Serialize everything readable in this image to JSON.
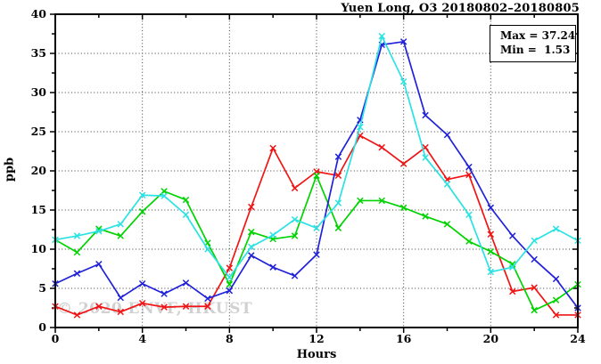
{
  "header": {
    "title": "Yuen Long, O3 20180802–20180805"
  },
  "legend": {
    "max_label": "Max = 37.24",
    "min_label": "Min =  1.53"
  },
  "watermark": {
    "text": "© 2020 ENVF, HKUST"
  },
  "axes": {
    "y_label": "ppb",
    "x_label": "Hours"
  },
  "chart_data": {
    "type": "line",
    "title": "Yuen Long, O3 20180802–20180805",
    "xlabel": "Hours",
    "ylabel": "ppb",
    "xlim": [
      0,
      24
    ],
    "ylim": [
      0,
      40
    ],
    "x_ticks": [
      0,
      4,
      8,
      12,
      16,
      20,
      24
    ],
    "y_ticks": [
      0,
      5,
      10,
      15,
      20,
      25,
      30,
      35,
      40
    ],
    "x_minor_step": 2,
    "y_minor_step": 2.5,
    "grid": "dotted",
    "legend_position": "top-right",
    "annotations": {
      "max": 37.24,
      "min": 1.53
    },
    "x": [
      0,
      1,
      2,
      3,
      4,
      5,
      6,
      7,
      8,
      9,
      10,
      11,
      12,
      13,
      14,
      15,
      16,
      17,
      18,
      19,
      20,
      21,
      22,
      23,
      24
    ],
    "series": [
      {
        "name": "series-red",
        "color": "#f11414",
        "marker": "x",
        "values": [
          2.7,
          1.6,
          2.7,
          2.0,
          3.1,
          2.6,
          2.7,
          2.7,
          7.6,
          15.4,
          22.9,
          17.8,
          19.9,
          19.4,
          24.5,
          23.0,
          20.9,
          23.0,
          18.9,
          19.5,
          11.9,
          4.6,
          5.1,
          1.6,
          1.6
        ]
      },
      {
        "name": "series-green",
        "color": "#00d300",
        "marker": "x",
        "values": [
          11.2,
          9.6,
          12.6,
          11.7,
          14.8,
          17.4,
          16.3,
          10.8,
          5.5,
          12.2,
          11.3,
          11.7,
          19.4,
          12.7,
          16.2,
          16.2,
          15.3,
          14.2,
          13.2,
          11.0,
          9.7,
          8.1,
          2.2,
          3.5,
          5.5
        ]
      },
      {
        "name": "series-blue",
        "color": "#2121d9",
        "marker": "x",
        "values": [
          5.6,
          6.9,
          8.1,
          3.8,
          5.6,
          4.3,
          5.7,
          3.7,
          4.7,
          9.2,
          7.7,
          6.6,
          9.3,
          21.8,
          26.5,
          36.1,
          36.5,
          27.1,
          24.6,
          20.5,
          15.3,
          11.7,
          8.7,
          6.2,
          2.5
        ]
      },
      {
        "name": "series-cyan",
        "color": "#2be2e2",
        "marker": "x",
        "values": [
          11.2,
          11.7,
          12.3,
          13.2,
          16.9,
          16.8,
          14.4,
          10.0,
          6.4,
          10.3,
          11.8,
          13.8,
          12.7,
          15.9,
          25.6,
          37.2,
          31.4,
          21.7,
          18.3,
          14.4,
          7.1,
          7.7,
          11.1,
          12.6,
          11.1
        ]
      }
    ]
  }
}
